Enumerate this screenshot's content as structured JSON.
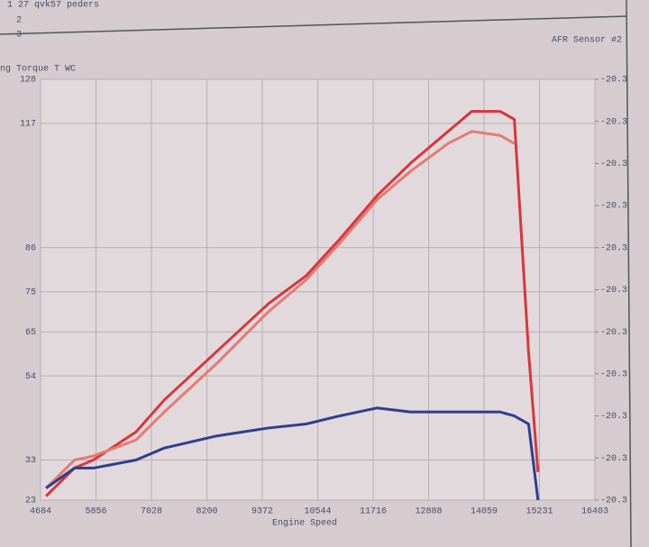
{
  "header": {
    "lines": [
      "1  27 qvk57   peders",
      "2",
      "3"
    ]
  },
  "chart_data": {
    "type": "line",
    "y_label": "ng Torque T WC",
    "y2_label": "AFR Sensor #2",
    "x_label": "Engine Speed",
    "x": [
      4800,
      5400,
      5800,
      6700,
      7300,
      8400,
      9500,
      10300,
      11000,
      11800,
      12500,
      13300,
      13800,
      14400,
      14700,
      15000,
      15200
    ],
    "series": [
      {
        "color": "#d8363c",
        "values": [
          24,
          31,
          33,
          40,
          48,
          60,
          72,
          79,
          88,
          99,
          107,
          115,
          120,
          120,
          118,
          60,
          30
        ]
      },
      {
        "color": "#e57b72",
        "values": [
          26,
          33,
          34,
          38,
          45,
          57,
          70,
          78,
          87,
          98,
          105,
          112,
          115,
          114,
          112,
          null,
          null
        ]
      },
      {
        "color": "#2c3f8e",
        "values": [
          26,
          31,
          31,
          33,
          36,
          39,
          41,
          42,
          44,
          46,
          45,
          45,
          45,
          45,
          44,
          42,
          23
        ]
      }
    ],
    "xlim": [
      4684,
      16403
    ],
    "xticks": [
      4684,
      5856,
      7028,
      8200,
      9372,
      10544,
      11716,
      12888,
      14059,
      15231,
      16403
    ],
    "ylim": [
      23,
      128
    ],
    "yticks": [
      23,
      33,
      54,
      65,
      75,
      86,
      117,
      128
    ],
    "y2lim": [
      -20.34,
      -20.26
    ],
    "y2ticks": [
      {
        "value": -20.34,
        "label": "-20.3"
      },
      {
        "value": -20.332,
        "label": "-20.3"
      },
      {
        "value": -20.324,
        "label": "-20.3"
      },
      {
        "value": -20.316,
        "label": "-20.3"
      },
      {
        "value": -20.308,
        "label": "-20.3"
      },
      {
        "value": -20.3,
        "label": "-20.3"
      },
      {
        "value": -20.292,
        "label": "-20.3"
      },
      {
        "value": -20.284,
        "label": "-20.3"
      },
      {
        "value": -20.276,
        "label": "-20.3"
      },
      {
        "value": -20.268,
        "label": "-20.3"
      },
      {
        "value": -20.26,
        "label": "-20.3"
      }
    ],
    "grid": true
  }
}
